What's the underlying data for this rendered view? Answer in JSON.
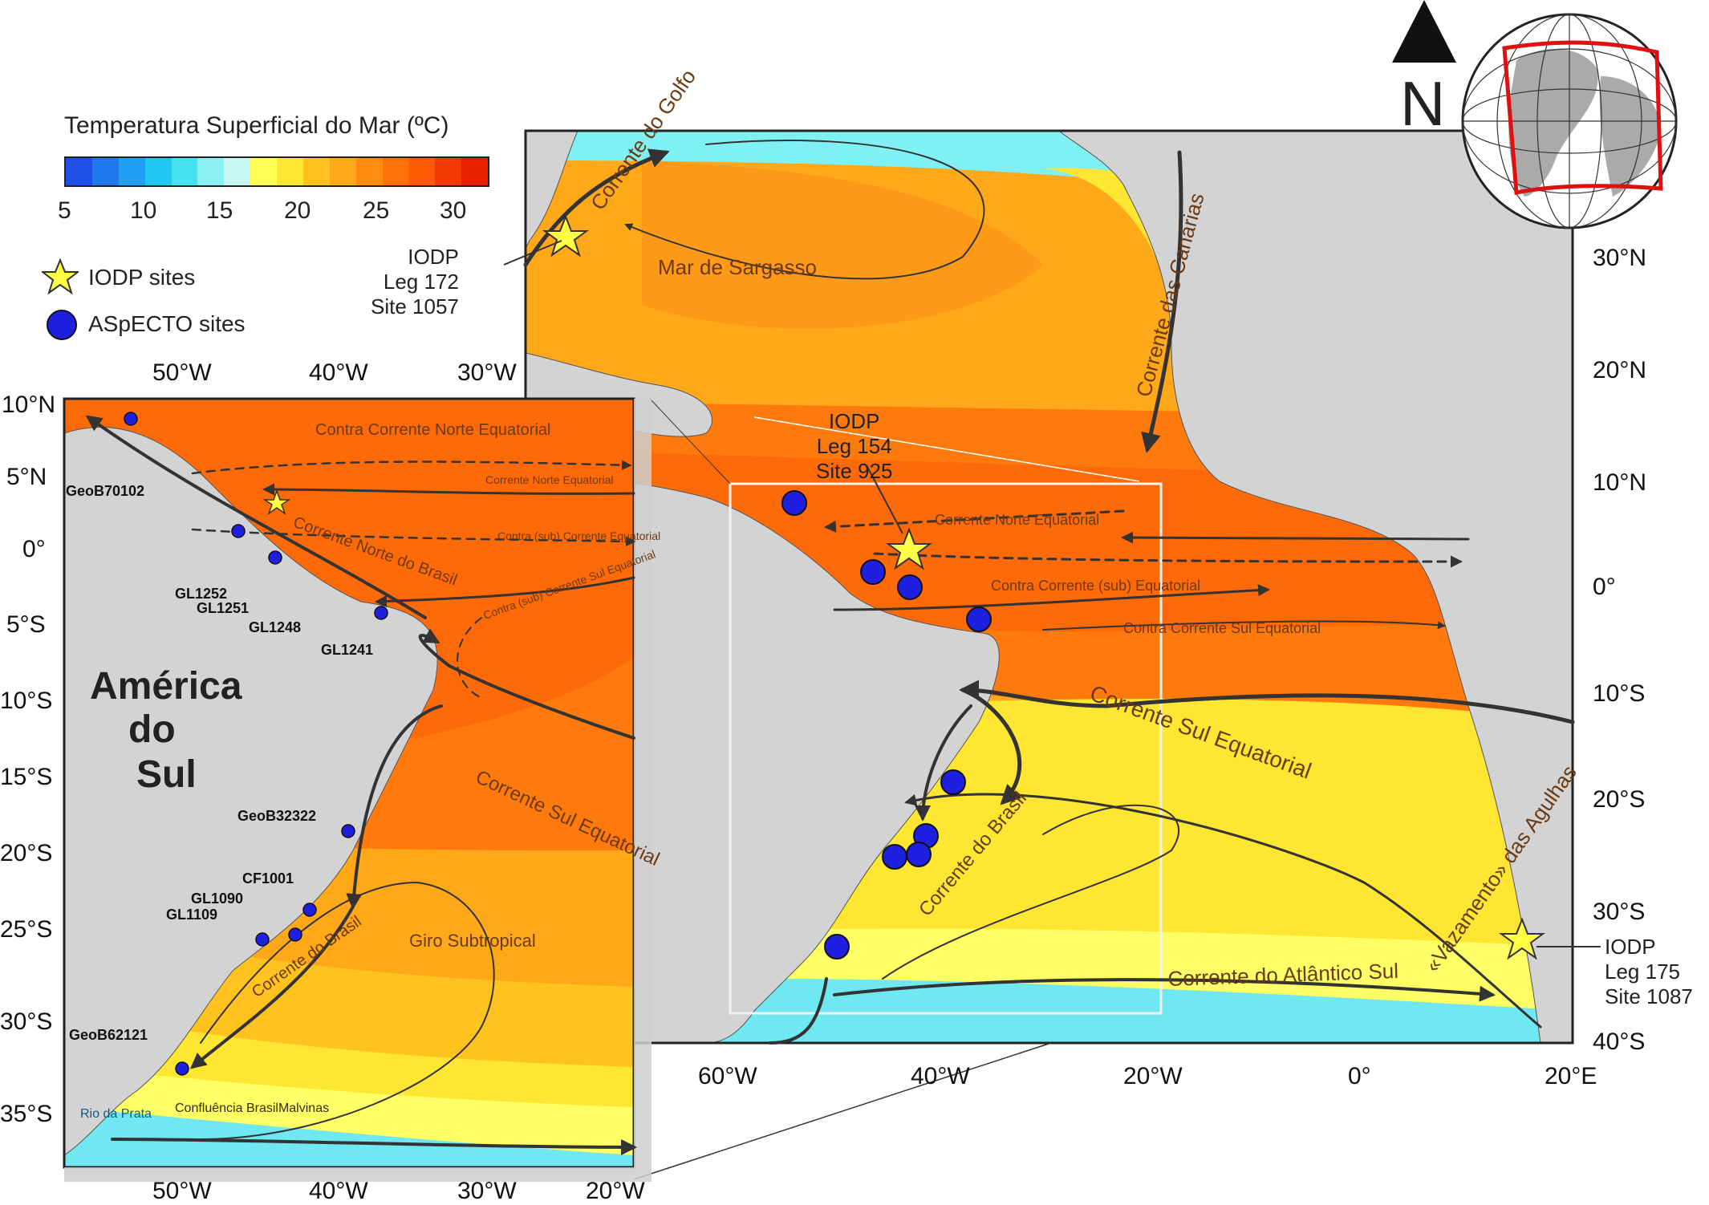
{
  "legend": {
    "title": "Temperatura Superficial do Mar (ºC)",
    "colorbar_ticks": [
      "5",
      "10",
      "15",
      "20",
      "25",
      "30"
    ],
    "colors": [
      "#1f4fe8",
      "#1f78ec",
      "#1fa0f0",
      "#22c8f3",
      "#45e2f2",
      "#8af0f2",
      "#c7f7ef",
      "#ffff55",
      "#ffe633",
      "#ffc21f",
      "#ffa81a",
      "#ff8c10",
      "#ff720a",
      "#ff5a05",
      "#f23b03",
      "#e81e00"
    ],
    "iodp_label": "IODP sites",
    "aspecto_label": "ASpECTO sites"
  },
  "north": {
    "letter": "N"
  },
  "main_map": {
    "lat_ticks": [
      "30°N",
      "20°N",
      "10°N",
      "0°",
      "10°S",
      "20°S",
      "30°S",
      "40°S"
    ],
    "lon_ticks": [
      "60°W",
      "40°W",
      "20°W",
      "0°",
      "20°E"
    ],
    "currents": [
      "Corrente do Golfo",
      "Mar de Sargasso",
      "Corrente das Canárias",
      "Corrente Norte Equatorial",
      "Contra Corrente (sub) Equatorial",
      "Contra Corrente Sul Equatorial",
      "Corrente Sul Equatorial",
      "Corrente do Brasil",
      "Corrente do Atlântico Sul",
      "«Vazamento» das Agulhas"
    ],
    "iodp_sites": [
      "IODP\nLeg 172\nSite 1057",
      "IODP\nLeg 154\nSite 925",
      "IODP\nLeg 175\nSite 1087"
    ]
  },
  "inset_map": {
    "lat_ticks": [
      "10°N",
      "5°N",
      "0°",
      "5°S",
      "10°S",
      "15°S",
      "20°S",
      "25°S",
      "30°S",
      "35°S"
    ],
    "lon_ticks_top": [
      "50°W",
      "40°W",
      "30°W"
    ],
    "lon_ticks_bottom": [
      "50°W",
      "40°W",
      "30°W",
      "20°W"
    ],
    "continent": [
      "América",
      "do",
      "Sul"
    ],
    "currents": [
      "Contra Corrente Norte Equatorial",
      "Corrente Norte Equatorial",
      "Contra (sub) Corrente Equatorial",
      "Corrente Norte do Brasil",
      "Contra (sub) Corrente Sul Equatorial",
      "Corrente Sul Equatorial",
      "Giro Subtropical",
      "Corrente do Brasil",
      "Confluência BrasilMalvinas",
      "Rio da Prata"
    ],
    "sites": [
      "GeoB70102",
      "GL1252",
      "GL1251",
      "GL1248",
      "GL1241",
      "GeoB32322",
      "CF1001",
      "GL1090",
      "GL1109",
      "GeoB62121"
    ]
  }
}
